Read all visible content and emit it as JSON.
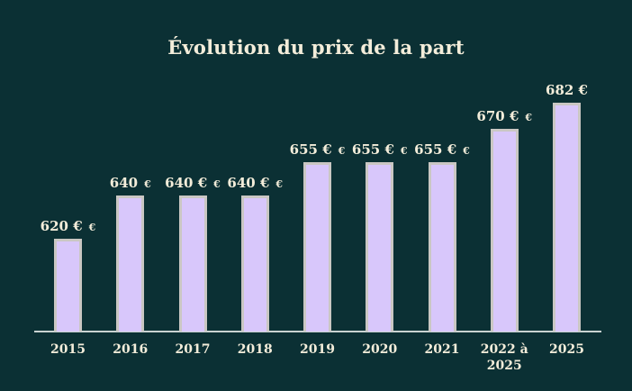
{
  "page": {
    "background": "#0b3034"
  },
  "chart_data": {
    "type": "bar",
    "title": "Évolution du prix de la part",
    "categories": [
      "2015",
      "2016",
      "2017",
      "2018",
      "2019",
      "2020",
      "2021",
      "2022 à 2025",
      "2025"
    ],
    "values": [
      620,
      640,
      640,
      640,
      655,
      655,
      655,
      670,
      682
    ],
    "unit": "€",
    "bar_labels": [
      {
        "main": "620 €",
        "suffix": "€"
      },
      {
        "main": "640",
        "suffix": "€"
      },
      {
        "main": "640 €",
        "suffix": "€"
      },
      {
        "main": "640 €",
        "suffix": "€"
      },
      {
        "main": "655 €",
        "suffix": "€"
      },
      {
        "main": "655 €",
        "suffix": "€"
      },
      {
        "main": "655 €",
        "suffix": "€"
      },
      {
        "main": "670 €",
        "suffix": "€"
      },
      {
        "main": "682 €",
        "suffix": ""
      }
    ],
    "x_tick_labels": [
      "2015",
      "2016",
      "2017",
      "2018",
      "2019",
      "2020",
      "2021",
      "2022 à\n2025",
      "2025"
    ],
    "xlabel": "",
    "ylabel": "",
    "ylim": [
      578,
      682
    ],
    "grid": false,
    "legend": null,
    "colors": {
      "background": "#0b3034",
      "bar_fill": "#d8c7fb",
      "bar_border": "#cac7c3",
      "axis_line": "#c9d3d1",
      "text": "#f3edda"
    }
  }
}
